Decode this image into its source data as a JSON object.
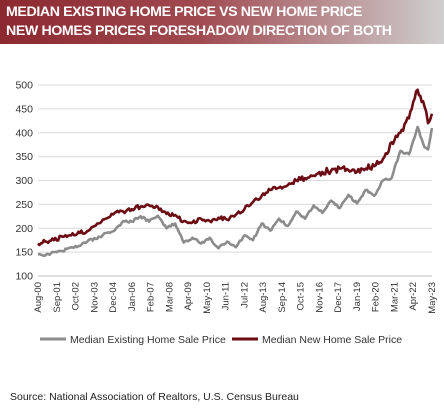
{
  "header": {
    "title_line1": "MEDIAN EXISTING HOME PRICE VS NEW HOME PRICE",
    "title_line2": "NEW HOMES PRICES FORESHADOW DIRECTION OF BOTH"
  },
  "source": "Source: National  Association of Realtors, U.S. Census Bureau",
  "chart_data": {
    "type": "line",
    "title": "",
    "xlabel": "",
    "ylabel": "",
    "ylim": [
      100,
      500
    ],
    "yticks": [
      100,
      150,
      200,
      250,
      300,
      350,
      400,
      450,
      500
    ],
    "xlim": [
      2000.583,
      2023.333
    ],
    "xticks": [
      {
        "label": "Aug-00",
        "t": 2000.583
      },
      {
        "label": "Sep-01",
        "t": 2001.667
      },
      {
        "label": "Oct-02",
        "t": 2002.75
      },
      {
        "label": "Nov-03",
        "t": 2003.833
      },
      {
        "label": "Dec-04",
        "t": 2004.917
      },
      {
        "label": "Jan-06",
        "t": 2006.0
      },
      {
        "label": "Feb-07",
        "t": 2007.083
      },
      {
        "label": "Mar-08",
        "t": 2008.167
      },
      {
        "label": "Apr-09",
        "t": 2009.25
      },
      {
        "label": "May-10",
        "t": 2010.333
      },
      {
        "label": "Jun-11",
        "t": 2011.417
      },
      {
        "label": "Jul-12",
        "t": 2012.5
      },
      {
        "label": "Aug-13",
        "t": 2013.583
      },
      {
        "label": "Sep-14",
        "t": 2014.667
      },
      {
        "label": "Oct-15",
        "t": 2015.75
      },
      {
        "label": "Nov-16",
        "t": 2016.833
      },
      {
        "label": "Dec-17",
        "t": 2017.917
      },
      {
        "label": "Jan-19",
        "t": 2019.0
      },
      {
        "label": "Feb-20",
        "t": 2020.083
      },
      {
        "label": "Mar-21",
        "t": 2021.167
      },
      {
        "label": "Apr-22",
        "t": 2022.25
      },
      {
        "label": "May-23",
        "t": 2023.333
      }
    ],
    "grid": true,
    "legend_position": "bottom",
    "series": [
      {
        "name": "Median Existing Home Sale Price",
        "color": "#8c8c8c",
        "points": [
          [
            2000.58,
            145
          ],
          [
            2001.0,
            143
          ],
          [
            2001.5,
            150
          ],
          [
            2002.0,
            152
          ],
          [
            2002.5,
            160
          ],
          [
            2003.0,
            163
          ],
          [
            2003.5,
            175
          ],
          [
            2004.0,
            178
          ],
          [
            2004.5,
            190
          ],
          [
            2005.0,
            195
          ],
          [
            2005.5,
            215
          ],
          [
            2006.0,
            214
          ],
          [
            2006.5,
            225
          ],
          [
            2007.0,
            214
          ],
          [
            2007.5,
            226
          ],
          [
            2008.0,
            200
          ],
          [
            2008.5,
            210
          ],
          [
            2009.0,
            170
          ],
          [
            2009.5,
            180
          ],
          [
            2010.0,
            168
          ],
          [
            2010.5,
            180
          ],
          [
            2011.0,
            158
          ],
          [
            2011.5,
            172
          ],
          [
            2012.0,
            160
          ],
          [
            2012.5,
            185
          ],
          [
            2013.0,
            175
          ],
          [
            2013.5,
            210
          ],
          [
            2014.0,
            195
          ],
          [
            2014.5,
            220
          ],
          [
            2015.0,
            205
          ],
          [
            2015.5,
            235
          ],
          [
            2016.0,
            220
          ],
          [
            2016.5,
            248
          ],
          [
            2017.0,
            232
          ],
          [
            2017.5,
            258
          ],
          [
            2018.0,
            242
          ],
          [
            2018.5,
            270
          ],
          [
            2019.0,
            252
          ],
          [
            2019.5,
            280
          ],
          [
            2020.0,
            268
          ],
          [
            2020.5,
            300
          ],
          [
            2021.0,
            305
          ],
          [
            2021.5,
            362
          ],
          [
            2022.0,
            355
          ],
          [
            2022.5,
            412
          ],
          [
            2022.9,
            370
          ],
          [
            2023.1,
            365
          ],
          [
            2023.33,
            410
          ]
        ]
      },
      {
        "name": "Median New Home Sale Price",
        "color": "#6b0c14",
        "points": [
          [
            2000.58,
            168
          ],
          [
            2001.0,
            172
          ],
          [
            2001.5,
            175
          ],
          [
            2002.0,
            182
          ],
          [
            2002.5,
            185
          ],
          [
            2003.0,
            190
          ],
          [
            2003.5,
            195
          ],
          [
            2004.0,
            210
          ],
          [
            2004.5,
            220
          ],
          [
            2005.0,
            232
          ],
          [
            2005.5,
            235
          ],
          [
            2006.0,
            240
          ],
          [
            2006.5,
            245
          ],
          [
            2007.0,
            248
          ],
          [
            2007.5,
            245
          ],
          [
            2008.0,
            230
          ],
          [
            2008.5,
            228
          ],
          [
            2009.0,
            215
          ],
          [
            2009.5,
            212
          ],
          [
            2010.0,
            220
          ],
          [
            2010.5,
            215
          ],
          [
            2011.0,
            222
          ],
          [
            2011.5,
            218
          ],
          [
            2012.0,
            228
          ],
          [
            2012.5,
            240
          ],
          [
            2013.0,
            255
          ],
          [
            2013.5,
            268
          ],
          [
            2014.0,
            280
          ],
          [
            2014.5,
            285
          ],
          [
            2015.0,
            290
          ],
          [
            2015.5,
            300
          ],
          [
            2016.0,
            305
          ],
          [
            2016.5,
            310
          ],
          [
            2017.0,
            318
          ],
          [
            2017.5,
            320
          ],
          [
            2018.0,
            325
          ],
          [
            2018.5,
            322
          ],
          [
            2019.0,
            318
          ],
          [
            2019.5,
            325
          ],
          [
            2020.0,
            330
          ],
          [
            2020.5,
            345
          ],
          [
            2021.0,
            380
          ],
          [
            2021.5,
            400
          ],
          [
            2022.0,
            430
          ],
          [
            2022.5,
            490
          ],
          [
            2022.9,
            455
          ],
          [
            2023.1,
            420
          ],
          [
            2023.33,
            440
          ]
        ]
      }
    ]
  }
}
